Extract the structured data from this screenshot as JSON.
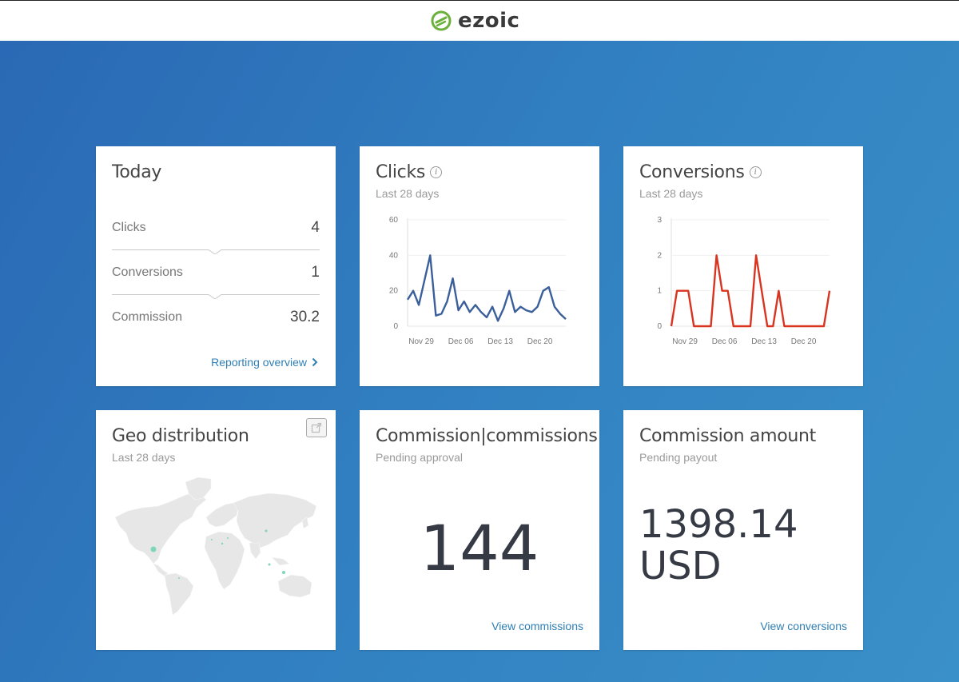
{
  "header": {
    "logo_text": "ezoic",
    "logo_color": "#6bb03a"
  },
  "today": {
    "title": "Today",
    "rows": [
      {
        "label": "Clicks",
        "value": "4"
      },
      {
        "label": "Conversions",
        "value": "1"
      },
      {
        "label": "Commission",
        "value": "30.2"
      }
    ],
    "link_label": "Reporting overview"
  },
  "clicks": {
    "title": "Clicks",
    "subtitle": "Last 28 days",
    "chart_data": {
      "type": "line",
      "x_ticks": [
        "Nov 29",
        "Dec 06",
        "Dec 13",
        "Dec 20"
      ],
      "y_ticks": [
        "0",
        "20",
        "40",
        "60"
      ],
      "ylim": [
        0,
        60
      ],
      "color": "#3a5f9a",
      "values": [
        15,
        20,
        12,
        26,
        40,
        6,
        7,
        14,
        27,
        9,
        14,
        8,
        12,
        8,
        5,
        11,
        3,
        10,
        20,
        8,
        11,
        9,
        8,
        11,
        20,
        22,
        11,
        7,
        4
      ]
    }
  },
  "conversions": {
    "title": "Conversions",
    "subtitle": "Last 28 days",
    "chart_data": {
      "type": "line",
      "x_ticks": [
        "Nov 29",
        "Dec 06",
        "Dec 13",
        "Dec 20"
      ],
      "y_ticks": [
        "0",
        "1",
        "2",
        "3"
      ],
      "ylim": [
        0,
        3
      ],
      "color": "#d9341f",
      "values": [
        0,
        1,
        1,
        1,
        0,
        0,
        0,
        0,
        2,
        1,
        1,
        0,
        0,
        0,
        0,
        2,
        1,
        0,
        0,
        1,
        0,
        0,
        0,
        0,
        0,
        0,
        0,
        0,
        1
      ]
    }
  },
  "geo": {
    "title": "Geo distribution",
    "subtitle": "Last 28 days",
    "accent": "#7fd6b8"
  },
  "commissions": {
    "title": "Commission|commissions",
    "subtitle": "Pending approval",
    "value": "144",
    "link_label": "View commissions"
  },
  "commission_amount": {
    "title": "Commission amount",
    "subtitle": "Pending payout",
    "amount": "1398.14",
    "currency": "USD",
    "link_label": "View conversions"
  }
}
